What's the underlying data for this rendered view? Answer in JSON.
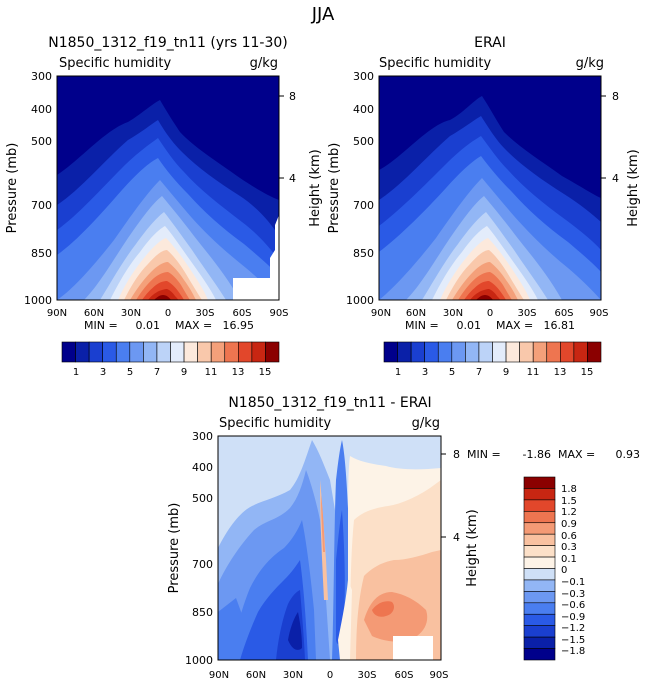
{
  "figure_title": "JJA",
  "chart_data": [
    {
      "type": "heatmap",
      "panel": "model",
      "title": "N1850_1312_f19_tn11 (yrs 11-30)",
      "subtitle_left": "Specific humidity",
      "subtitle_right": "g/kg",
      "ylabel": "Pressure (mb)",
      "y2label": "Height (km)",
      "x_ticks": [
        "90N",
        "60N",
        "30N",
        "0",
        "30S",
        "60S",
        "90S"
      ],
      "y_ticks": [
        "300",
        "400",
        "500",
        "700",
        "850",
        "1000"
      ],
      "y2_ticks": [
        "8",
        "4"
      ],
      "xlim": [
        90,
        -90
      ],
      "ylim": [
        1000,
        300
      ],
      "stats": {
        "min_label": "MIN =",
        "min": "0.01",
        "max_label": "MAX =",
        "max": "16.95"
      },
      "contour_levels": [
        1,
        2,
        3,
        4,
        5,
        6,
        7,
        8,
        9,
        10,
        11,
        12,
        13,
        14,
        15
      ],
      "colorbar_labels": [
        "1",
        "3",
        "5",
        "7",
        "9",
        "11",
        "13",
        "15"
      ],
      "colors": [
        "#00008b",
        "#0a20a8",
        "#1a3fd0",
        "#2a5ae6",
        "#4a7ef0",
        "#6c98f2",
        "#92b6f5",
        "#bcd3f8",
        "#e3ecfb",
        "#fce9dc",
        "#f9c8ab",
        "#f4a07a",
        "#ee7550",
        "#e2472b",
        "#c82612",
        "#8b0000"
      ]
    },
    {
      "type": "heatmap",
      "panel": "obs",
      "title": "ERAI",
      "subtitle_left": "Specific humidity",
      "subtitle_right": "g/kg",
      "ylabel": "Pressure (mb)",
      "y2label": "Height (km)",
      "x_ticks": [
        "90N",
        "60N",
        "30N",
        "0",
        "30S",
        "60S",
        "90S"
      ],
      "y_ticks": [
        "300",
        "400",
        "500",
        "700",
        "850",
        "1000"
      ],
      "y2_ticks": [
        "8",
        "4"
      ],
      "xlim": [
        90,
        -90
      ],
      "ylim": [
        1000,
        300
      ],
      "stats": {
        "min_label": "MIN =",
        "min": "0.01",
        "max_label": "MAX =",
        "max": "16.81"
      },
      "contour_levels": [
        1,
        2,
        3,
        4,
        5,
        6,
        7,
        8,
        9,
        10,
        11,
        12,
        13,
        14,
        15
      ],
      "colorbar_labels": [
        "1",
        "3",
        "5",
        "7",
        "9",
        "11",
        "13",
        "15"
      ],
      "colors": [
        "#00008b",
        "#0a20a8",
        "#1a3fd0",
        "#2a5ae6",
        "#4a7ef0",
        "#6c98f2",
        "#92b6f5",
        "#bcd3f8",
        "#e3ecfb",
        "#fce9dc",
        "#f9c8ab",
        "#f4a07a",
        "#ee7550",
        "#e2472b",
        "#c82612",
        "#8b0000"
      ]
    },
    {
      "type": "heatmap",
      "panel": "diff",
      "title": "N1850_1312_f19_tn11 - ERAI",
      "subtitle_left": "Specific humidity",
      "subtitle_right": "g/kg",
      "ylabel": "Pressure (mb)",
      "y2label": "Height (km)",
      "x_ticks": [
        "90N",
        "60N",
        "30N",
        "0",
        "30S",
        "60S",
        "90S"
      ],
      "y_ticks": [
        "300",
        "400",
        "500",
        "700",
        "850",
        "1000"
      ],
      "y2_ticks": [
        "8",
        "4"
      ],
      "xlim": [
        90,
        -90
      ],
      "ylim": [
        1000,
        300
      ],
      "stats": {
        "min_label": "MIN =",
        "min": "-1.86",
        "max_label": "MAX =",
        "max": "0.93"
      },
      "contour_levels": [
        -1.8,
        -1.5,
        -1.2,
        -0.9,
        -0.6,
        -0.3,
        -0.1,
        0,
        0.1,
        0.3,
        0.6,
        0.9,
        1.2,
        1.5,
        1.8
      ],
      "colorbar_labels": [
        "1.8",
        "1.5",
        "1.2",
        "0.9",
        "0.6",
        "0.3",
        "0.1",
        "0",
        "−0.1",
        "−0.3",
        "−0.6",
        "−0.9",
        "−1.2",
        "−1.5",
        "−1.8"
      ],
      "colors": [
        "#00008b",
        "#0a20a8",
        "#1a3fd0",
        "#2a5ae6",
        "#4a7ef0",
        "#6c98f2",
        "#92b6f5",
        "#cfe0f7",
        "#fdf3e7",
        "#fce0c8",
        "#f9c1a0",
        "#f49a75",
        "#ee7550",
        "#e2472b",
        "#c82612",
        "#8b0000"
      ]
    }
  ]
}
